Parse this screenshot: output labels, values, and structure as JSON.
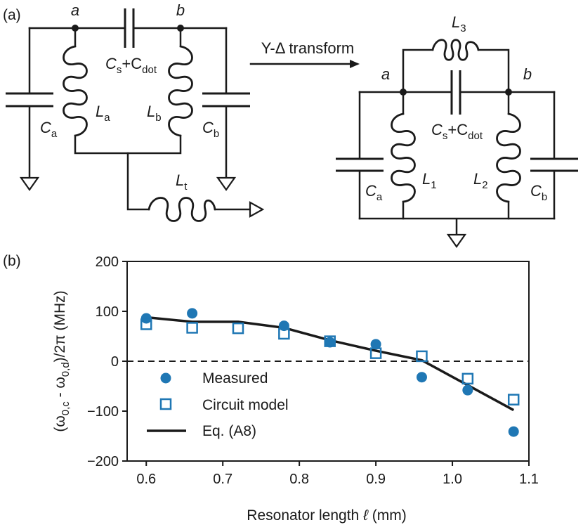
{
  "panel_a": {
    "label": "(a)",
    "arrow_label": "Y-Δ transform",
    "left": {
      "node_a": "a",
      "node_b": "b",
      "cap_coupling": {
        "c1": "C",
        "c1_sub": "s",
        "plus": "+C",
        "c2_sub": "dot"
      },
      "cap_a": {
        "main": "C",
        "sub": "a"
      },
      "cap_b": {
        "main": "C",
        "sub": "b"
      },
      "ind_a": {
        "main": "L",
        "sub": "a"
      },
      "ind_b": {
        "main": "L",
        "sub": "b"
      },
      "ind_t": {
        "main": "L",
        "sub": "t"
      }
    },
    "right": {
      "node_a": "a",
      "node_b": "b",
      "ind_3": {
        "main": "L",
        "sub": "3"
      },
      "cap_coupling": {
        "c1": "C",
        "c1_sub": "s",
        "plus": "+C",
        "c2_sub": "dot"
      },
      "cap_a": {
        "main": "C",
        "sub": "a"
      },
      "cap_b": {
        "main": "C",
        "sub": "b"
      },
      "ind_1": {
        "main": "L",
        "sub": "1"
      },
      "ind_2": {
        "main": "L",
        "sub": "2"
      }
    }
  },
  "panel_b": {
    "label": "(b)",
    "ylabel": {
      "open": "(ω",
      "s1": "0,c",
      "mid": " - ω",
      "s2": "0,d",
      "close": ")/2π (MHz)"
    },
    "xlabel": {
      "text": "Resonator length ",
      "var": "ℓ",
      "unit": " (mm)"
    },
    "legend": {
      "measured": "Measured",
      "model": "Circuit model",
      "eq": "Eq. (A8)"
    }
  },
  "colors": {
    "marker": "#1f77b4",
    "line": "#1a1a1a"
  },
  "chart_data": {
    "type": "scatter",
    "xlabel": "Resonator length ℓ (mm)",
    "ylabel": "(ω0,c - ω0,d)/2π (MHz)",
    "xlim": [
      0.575,
      1.1
    ],
    "ylim": [
      -200,
      200
    ],
    "xticks": [
      0.6,
      0.7,
      0.8,
      0.9,
      1.0,
      1.1
    ],
    "xtick_labels": [
      "0.6",
      "0.7",
      "0.8",
      "0.9",
      "1.0",
      "1.1"
    ],
    "yticks": [
      -200,
      -100,
      0,
      100,
      200
    ],
    "ytick_labels": [
      "−200",
      "−100",
      "0",
      "100",
      "200"
    ],
    "zero_line": "dashed",
    "legend_position": "lower-left",
    "series": [
      {
        "name": "Measured",
        "marker": "filled-circle",
        "x": [
          0.6,
          0.66,
          0.78,
          0.84,
          0.9,
          0.96,
          1.02,
          1.08
        ],
        "y": [
          86,
          96,
          71,
          38,
          34,
          -32,
          -58,
          -141
        ]
      },
      {
        "name": "Circuit model",
        "marker": "open-square",
        "x": [
          0.6,
          0.66,
          0.72,
          0.78,
          0.84,
          0.9,
          0.96,
          1.02,
          1.08
        ],
        "y": [
          74,
          67,
          66,
          55,
          40,
          16,
          10,
          -35,
          -77
        ]
      },
      {
        "name": "Eq. (A8)",
        "marker": "line",
        "x": [
          0.6,
          0.66,
          0.72,
          0.78,
          0.84,
          0.9,
          0.96,
          1.02,
          1.08
        ],
        "y": [
          88,
          79,
          79,
          67,
          42,
          21,
          2,
          -48,
          -98
        ]
      }
    ]
  }
}
